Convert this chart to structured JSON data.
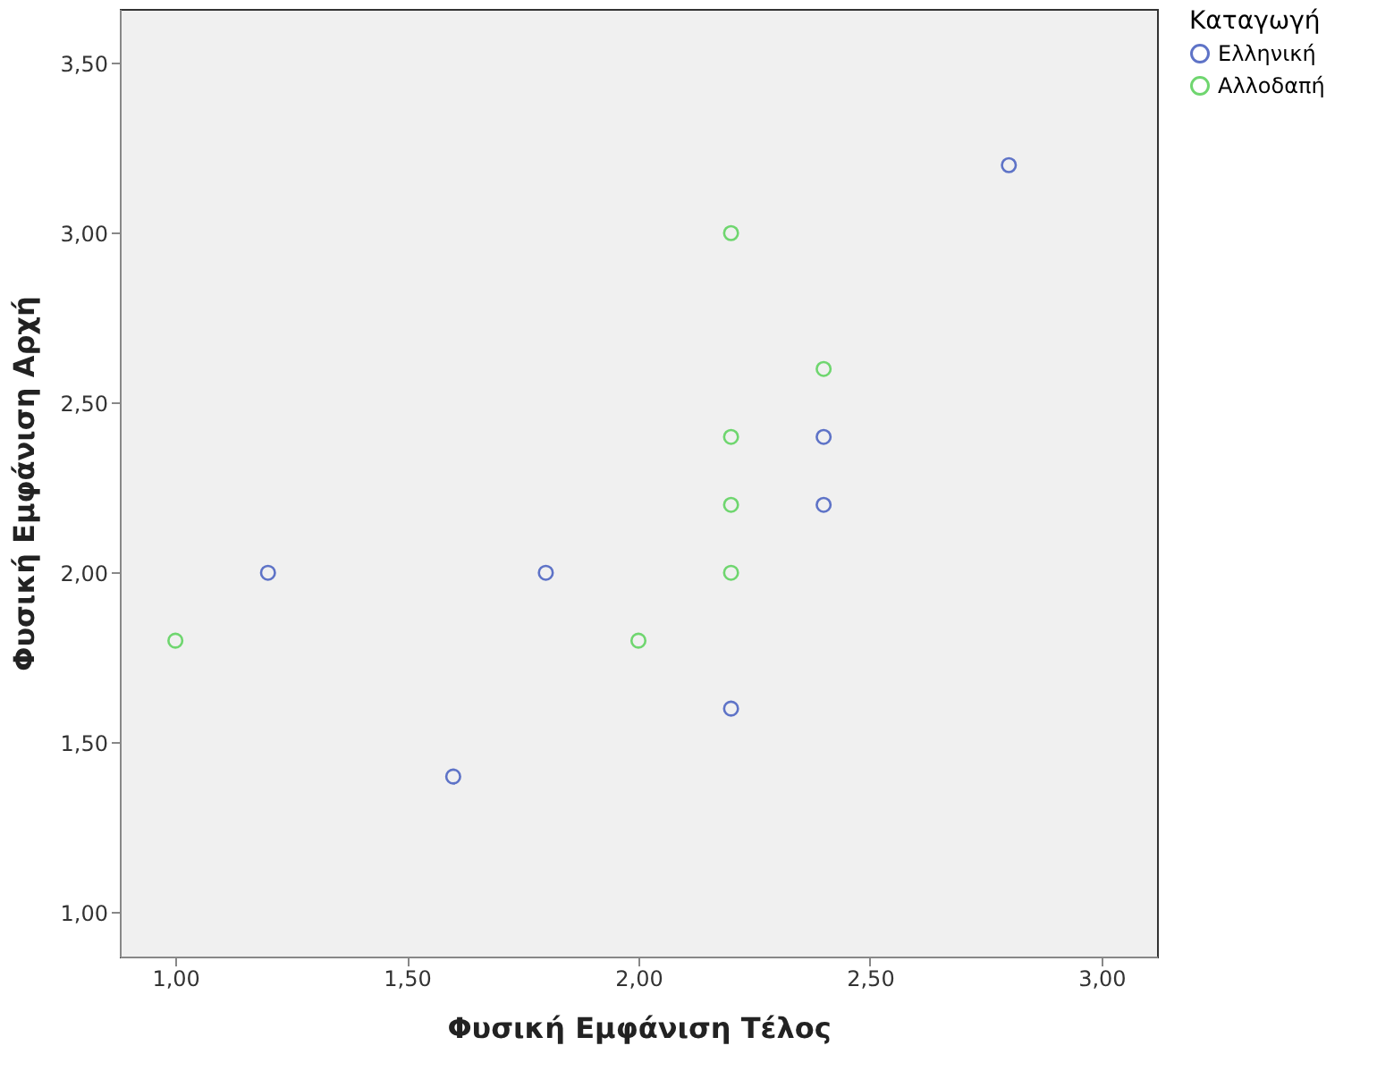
{
  "chart_data": {
    "type": "scatter",
    "xlabel": "Φυσική Εμφάνιση Τέλος",
    "ylabel": "Φυσική Εμφάνιση Αρχή",
    "legend_title": "Καταγωγή",
    "legend": "top right",
    "marker": "circle",
    "grid": false,
    "xlim": [
      0.88,
      3.12
    ],
    "ylim": [
      0.87,
      3.66
    ],
    "xticks": [
      {
        "value": 1,
        "label": "1,00"
      },
      {
        "value": 1.5,
        "label": "1,50"
      },
      {
        "value": 2,
        "label": "2,00"
      },
      {
        "value": 2.5,
        "label": "2,50"
      },
      {
        "value": 3,
        "label": "3,00"
      }
    ],
    "yticks": [
      {
        "value": 1,
        "label": "1,00"
      },
      {
        "value": 1.5,
        "label": "1,50"
      },
      {
        "value": 2,
        "label": "2,00"
      },
      {
        "value": 2.5,
        "label": "2,50"
      },
      {
        "value": 3,
        "label": "3,00"
      },
      {
        "value": 3.5,
        "label": "3,50"
      }
    ],
    "series": [
      {
        "name": "Ελληνική",
        "color": "#5e73c7",
        "x": [
          1.2,
          1.8,
          1.6,
          2.2,
          2.4,
          2.4,
          2.8
        ],
        "values": [
          2.0,
          2.0,
          1.4,
          1.6,
          2.4,
          2.2,
          3.2
        ]
      },
      {
        "name": "Αλλοδαπή",
        "color": "#6fd66f",
        "x": [
          1.0,
          2.0,
          2.2,
          2.2,
          2.2,
          2.2,
          2.4
        ],
        "values": [
          1.8,
          1.8,
          3.0,
          2.4,
          2.2,
          2.0,
          2.6
        ]
      }
    ]
  }
}
